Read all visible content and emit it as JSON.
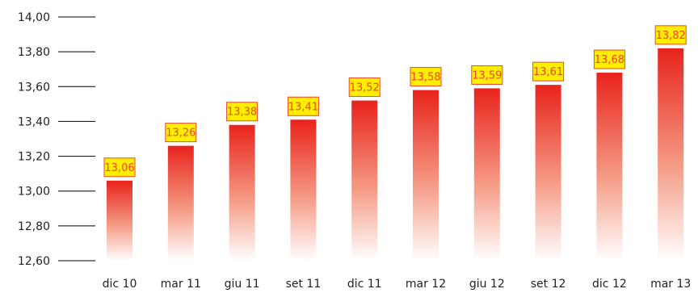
{
  "chart_data": {
    "type": "bar",
    "categories": [
      "dic 10",
      "mar 11",
      "giu 11",
      "set 11",
      "dic 11",
      "mar 12",
      "giu 12",
      "set 12",
      "dic 12",
      "mar 13"
    ],
    "values": [
      13.06,
      13.26,
      13.38,
      13.41,
      13.52,
      13.58,
      13.59,
      13.61,
      13.68,
      13.82
    ],
    "data_labels": [
      "13,06",
      "13,26",
      "13,38",
      "13,41",
      "13,52",
      "13,58",
      "13,59",
      "13,61",
      "13,68",
      "13,82"
    ],
    "yticks": [
      12.6,
      12.8,
      13.0,
      13.2,
      13.4,
      13.6,
      13.8,
      14.0
    ],
    "ytick_labels": [
      "12,60",
      "12,80",
      "13,00",
      "13,20",
      "13,40",
      "13,60",
      "13,80",
      "14,00"
    ],
    "ylim": [
      12.6,
      14.0
    ],
    "title": "",
    "xlabel": "",
    "ylabel": "",
    "grid": false,
    "legend": "none",
    "colors": {
      "bar_top": "#e8231c",
      "bar_bottom": "#ffffff",
      "label_fill": "#ffee00",
      "label_border": "#e8492c",
      "label_text": "#e8492c",
      "tick_line": "#000000"
    }
  }
}
